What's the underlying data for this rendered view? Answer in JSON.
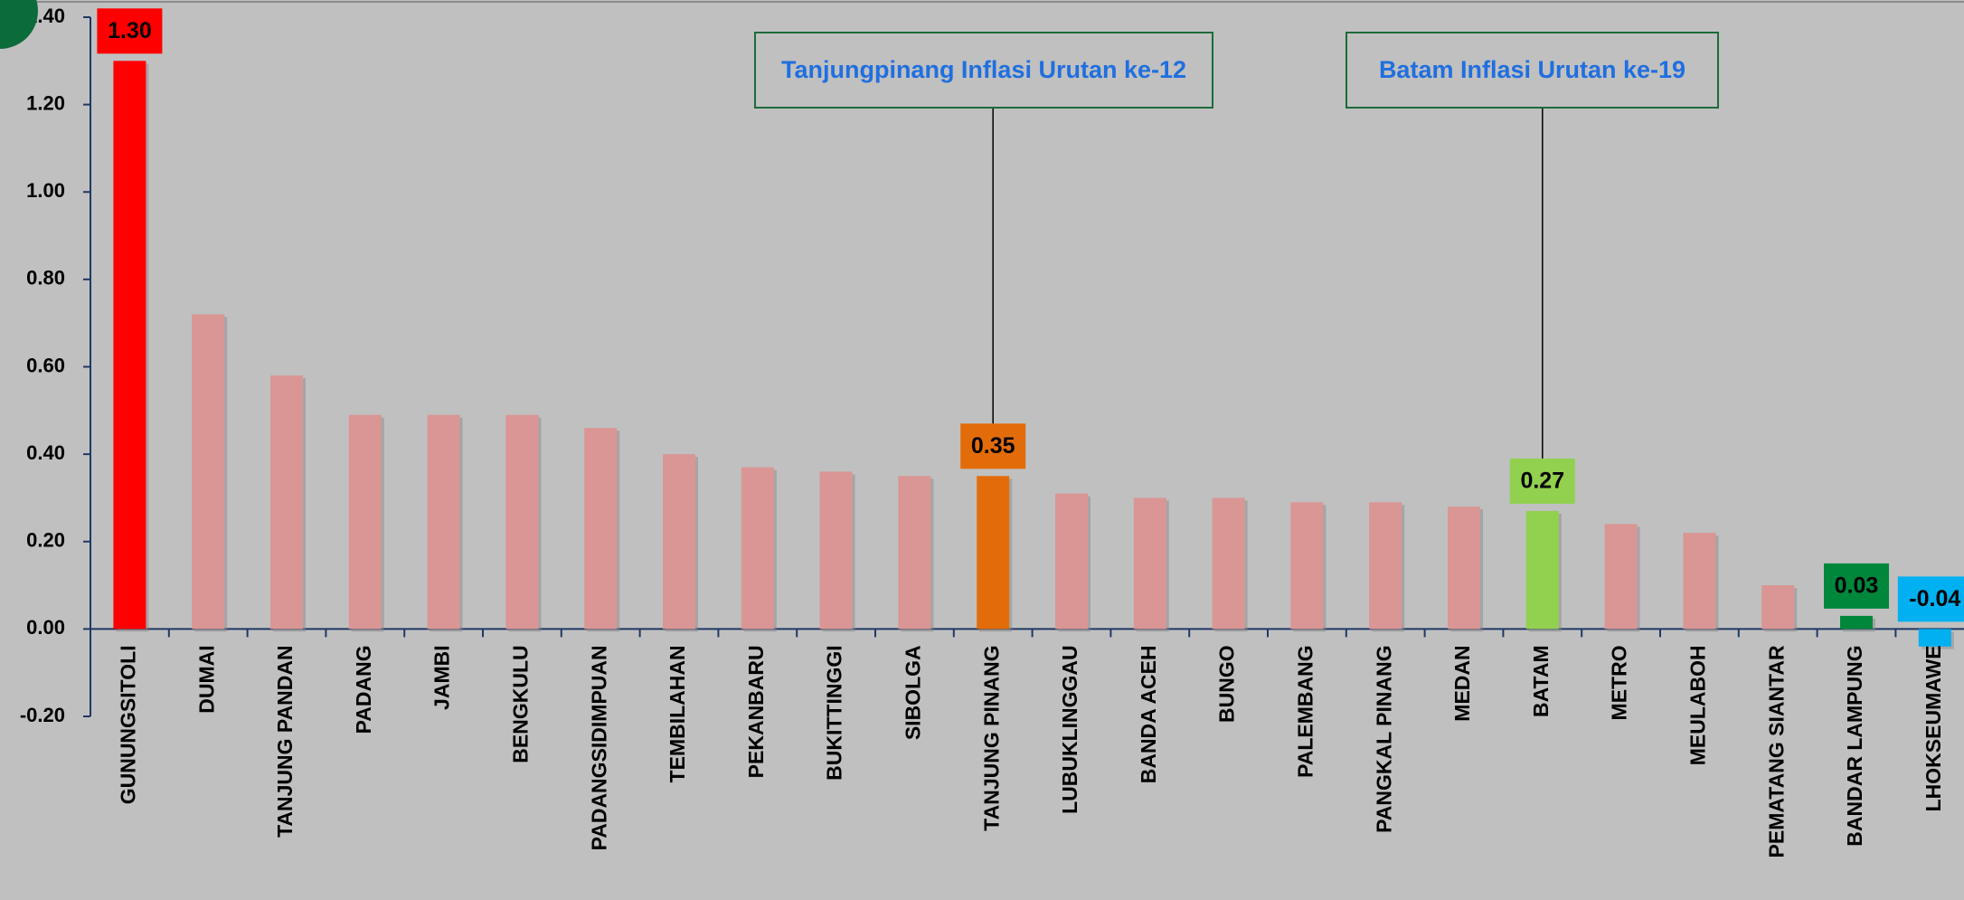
{
  "chart_data": {
    "type": "bar",
    "categories": [
      "GUNUNGSITOLI",
      "DUMAI",
      "TANJUNG PANDAN",
      "PADANG",
      "JAMBI",
      "BENGKULU",
      "PADANGSIDIMPUAN",
      "TEMBILAHAN",
      "PEKANBARU",
      "BUKITTINGGI",
      "SIBOLGA",
      "TANJUNG PINANG",
      "LUBUKLINGGAU",
      "BANDA ACEH",
      "BUNGO",
      "PALEMBANG",
      "PANGKAL PINANG",
      "MEDAN",
      "BATAM",
      "METRO",
      "MEULABOH",
      "PEMATANG SIANTAR",
      "BANDAR LAMPUNG",
      "LHOKSEUMAWE"
    ],
    "values": [
      1.3,
      0.72,
      0.58,
      0.49,
      0.49,
      0.49,
      0.46,
      0.4,
      0.37,
      0.36,
      0.35,
      0.35,
      0.31,
      0.3,
      0.3,
      0.29,
      0.29,
      0.28,
      0.27,
      0.24,
      0.22,
      0.1,
      0.03,
      -0.04
    ],
    "value_labels": [
      "1.30",
      null,
      null,
      null,
      null,
      null,
      null,
      null,
      null,
      null,
      null,
      "0.35",
      null,
      null,
      null,
      null,
      null,
      null,
      "0.27",
      null,
      null,
      null,
      "0.03",
      "-0.04"
    ],
    "colors": [
      "#ff0000",
      "#d99694",
      "#d99694",
      "#d99694",
      "#d99694",
      "#d99694",
      "#d99694",
      "#d99694",
      "#d99694",
      "#d99694",
      "#d99694",
      "#e36c0a",
      "#d99694",
      "#d99694",
      "#d99694",
      "#d99694",
      "#d99694",
      "#d99694",
      "#92d050",
      "#d99694",
      "#d99694",
      "#d99694",
      "#00873c",
      "#00b0f0"
    ],
    "ylim": [
      -0.2,
      1.4
    ],
    "yticks": [
      {
        "value": -0.2,
        "label": "-0.20"
      },
      {
        "value": 0,
        "label": "0.00"
      },
      {
        "value": 0.2,
        "label": "0.20"
      },
      {
        "value": 0.4,
        "label": "0.40"
      },
      {
        "value": 0.6,
        "label": "0.60"
      },
      {
        "value": 0.8,
        "label": "0.80"
      },
      {
        "value": 1.0,
        "label": "1.00"
      },
      {
        "value": 1.2,
        "label": "1.20"
      },
      {
        "value": 1.4,
        "label": "1.40"
      }
    ],
    "grid": false,
    "annotations": [
      {
        "text": "Tanjungpinang Inflasi Urutan ke-12"
      },
      {
        "text": "Batam Inflasi Urutan ke-19"
      }
    ]
  }
}
